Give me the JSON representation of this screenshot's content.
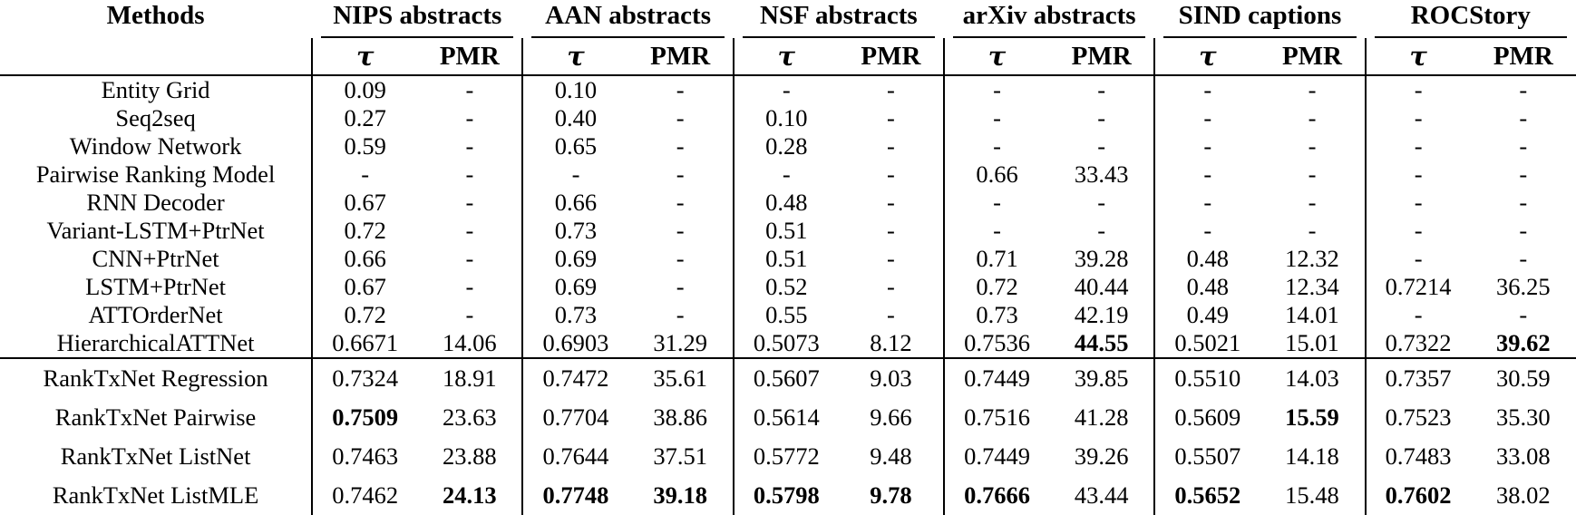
{
  "table": {
    "corner_header": "Methods",
    "metric_headers": {
      "tau": "τ",
      "pmr": "PMR"
    },
    "groups": [
      "NIPS abstracts",
      "AAN abstracts",
      "NSF abstracts",
      "arXiv abstracts",
      "SIND captions",
      "ROCStory"
    ],
    "sections": [
      {
        "name": "baselines",
        "rows": [
          {
            "method": "Entity Grid",
            "values": [
              "0.09",
              "-",
              "0.10",
              "-",
              "-",
              "-",
              "-",
              "-",
              "-",
              "-",
              "-",
              "-"
            ],
            "bold": []
          },
          {
            "method": "Seq2seq",
            "values": [
              "0.27",
              "-",
              "0.40",
              "-",
              "0.10",
              "-",
              "-",
              "-",
              "-",
              "-",
              "-",
              "-"
            ],
            "bold": []
          },
          {
            "method": "Window Network",
            "values": [
              "0.59",
              "-",
              "0.65",
              "-",
              "0.28",
              "-",
              "-",
              "-",
              "-",
              "-",
              "-",
              "-"
            ],
            "bold": []
          },
          {
            "method": "Pairwise Ranking Model",
            "values": [
              "-",
              "-",
              "-",
              "-",
              "-",
              "-",
              "0.66",
              "33.43",
              "-",
              "-",
              "-",
              "-"
            ],
            "bold": []
          },
          {
            "method": "RNN Decoder",
            "values": [
              "0.67",
              "-",
              "0.66",
              "-",
              "0.48",
              "-",
              "-",
              "-",
              "-",
              "-",
              "-",
              "-"
            ],
            "bold": []
          },
          {
            "method": "Variant-LSTM+PtrNet",
            "values": [
              "0.72",
              "-",
              "0.73",
              "-",
              "0.51",
              "-",
              "-",
              "-",
              "-",
              "-",
              "-",
              "-"
            ],
            "bold": []
          },
          {
            "method": "CNN+PtrNet",
            "values": [
              "0.66",
              "-",
              "0.69",
              "-",
              "0.51",
              "-",
              "0.71",
              "39.28",
              "0.48",
              "12.32",
              "-",
              "-"
            ],
            "bold": []
          },
          {
            "method": "LSTM+PtrNet",
            "values": [
              "0.67",
              "-",
              "0.69",
              "-",
              "0.52",
              "-",
              "0.72",
              "40.44",
              "0.48",
              "12.34",
              "0.7214",
              "36.25"
            ],
            "bold": []
          },
          {
            "method": "ATTOrderNet",
            "values": [
              "0.72",
              "-",
              "0.73",
              "-",
              "0.55",
              "-",
              "0.73",
              "42.19",
              "0.49",
              "14.01",
              "-",
              "-"
            ],
            "bold": []
          },
          {
            "method": "HierarchicalATTNet",
            "values": [
              "0.6671",
              "14.06",
              "0.6903",
              "31.29",
              "0.5073",
              "8.12",
              "0.7536",
              "44.55",
              "0.5021",
              "15.01",
              "0.7322",
              "39.62"
            ],
            "bold": [
              7,
              11
            ]
          }
        ]
      },
      {
        "name": "ranktxnet",
        "rows": [
          {
            "method": "RankTxNet Regression",
            "values": [
              "0.7324",
              "18.91",
              "0.7472",
              "35.61",
              "0.5607",
              "9.03",
              "0.7449",
              "39.85",
              "0.5510",
              "14.03",
              "0.7357",
              "30.59"
            ],
            "bold": []
          },
          {
            "method": "RankTxNet Pairwise",
            "values": [
              "0.7509",
              "23.63",
              "0.7704",
              "38.86",
              "0.5614",
              "9.66",
              "0.7516",
              "41.28",
              "0.5609",
              "15.59",
              "0.7523",
              "35.30"
            ],
            "bold": [
              0,
              9
            ]
          },
          {
            "method": "RankTxNet ListNet",
            "values": [
              "0.7463",
              "23.88",
              "0.7644",
              "37.51",
              "0.5772",
              "9.48",
              "0.7449",
              "39.26",
              "0.5507",
              "14.18",
              "0.7483",
              "33.08"
            ],
            "bold": []
          },
          {
            "method": "RankTxNet ListMLE",
            "values": [
              "0.7462",
              "24.13",
              "0.7748",
              "39.18",
              "0.5798",
              "9.78",
              "0.7666",
              "43.44",
              "0.5652",
              "15.48",
              "0.7602",
              "38.02"
            ],
            "bold": [
              1,
              2,
              3,
              4,
              5,
              6,
              8,
              10
            ]
          }
        ]
      }
    ]
  }
}
